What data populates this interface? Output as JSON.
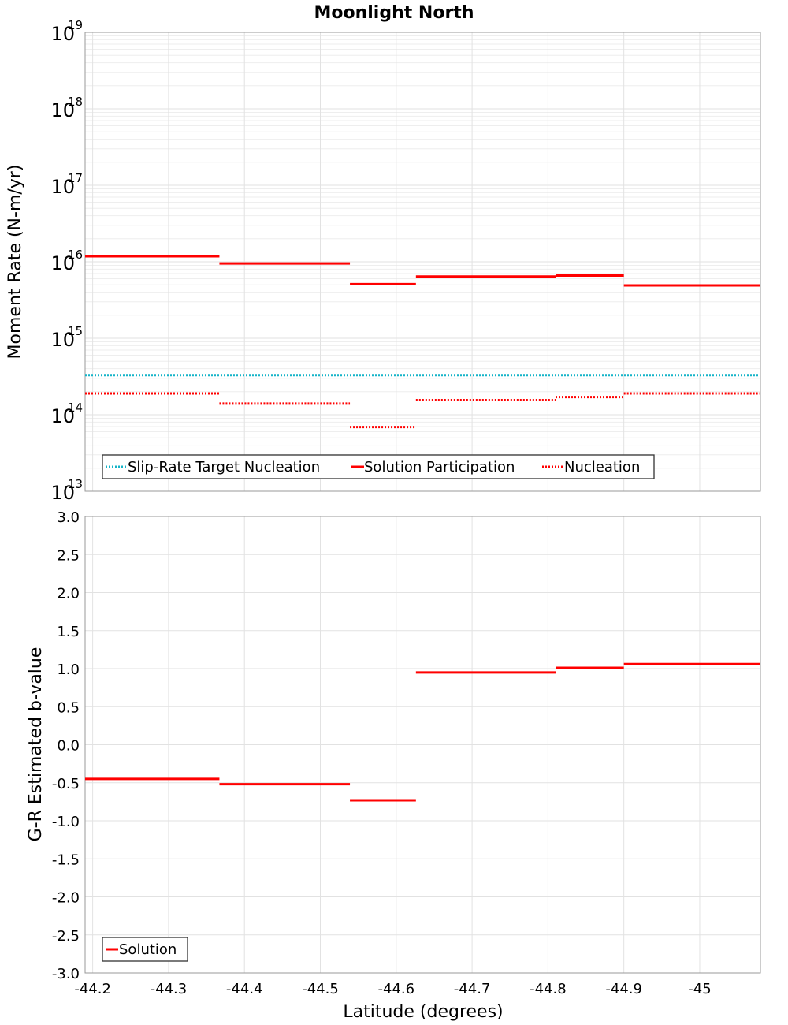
{
  "title": "Moonlight North",
  "colors": {
    "solution": "#ff0000",
    "target": "#14b4c8",
    "nucleation": "#ff0000"
  },
  "chart_data": [
    {
      "type": "line",
      "step": true,
      "yscale": "log",
      "ylabel": "Moment Rate (N-m/yr)",
      "xlim": [
        -44.19,
        -45.08
      ],
      "ylim": [
        10000000000000.0,
        1e+19
      ],
      "y_ticks": [
        {
          "base": "10",
          "exp": "13"
        },
        {
          "base": "10",
          "exp": "14"
        },
        {
          "base": "10",
          "exp": "15"
        },
        {
          "base": "10",
          "exp": "16"
        },
        {
          "base": "10",
          "exp": "17"
        },
        {
          "base": "10",
          "exp": "18"
        },
        {
          "base": "10",
          "exp": "19"
        }
      ],
      "grid": true,
      "legend_position": "bottom-left",
      "series": [
        {
          "name": "Slip-Rate Target Nucleation",
          "style": "dotted",
          "color": "#14b4c8",
          "segments": [
            {
              "x0": -44.19,
              "x1": -45.08,
              "y": 330000000000000.0
            }
          ]
        },
        {
          "name": "Solution Participation",
          "style": "solid",
          "color": "#ff0000",
          "segments": [
            {
              "x0": -44.19,
              "x1": -44.367,
              "y": 1.18e+16
            },
            {
              "x0": -44.367,
              "x1": -44.539,
              "y": 9500000000000000.0
            },
            {
              "x0": -44.539,
              "x1": -44.626,
              "y": 5100000000000000.0
            },
            {
              "x0": -44.626,
              "x1": -44.81,
              "y": 6400000000000000.0
            },
            {
              "x0": -44.81,
              "x1": -44.9,
              "y": 6600000000000000.0
            },
            {
              "x0": -44.9,
              "x1": -45.08,
              "y": 4900000000000000.0
            }
          ]
        },
        {
          "name": "Nucleation",
          "style": "dotted",
          "color": "#ff0000",
          "segments": [
            {
              "x0": -44.19,
              "x1": -44.367,
              "y": 190000000000000.0
            },
            {
              "x0": -44.367,
              "x1": -44.539,
              "y": 140000000000000.0
            },
            {
              "x0": -44.539,
              "x1": -44.626,
              "y": 69000000000000.0
            },
            {
              "x0": -44.626,
              "x1": -44.81,
              "y": 155000000000000.0
            },
            {
              "x0": -44.81,
              "x1": -44.9,
              "y": 170000000000000.0
            },
            {
              "x0": -44.9,
              "x1": -45.08,
              "y": 190000000000000.0
            }
          ]
        }
      ]
    },
    {
      "type": "line",
      "step": true,
      "ylabel": "G-R Estimated b-value",
      "xlabel": "Latitude (degrees)",
      "xlim": [
        -44.19,
        -45.08
      ],
      "ylim": [
        -3.0,
        3.0
      ],
      "x_ticks": [
        "-44.2",
        "-44.3",
        "-44.4",
        "-44.5",
        "-44.6",
        "-44.7",
        "-44.8",
        "-44.9",
        "-45"
      ],
      "y_ticks": [
        "-3.0",
        "-2.5",
        "-2.0",
        "-1.5",
        "-1.0",
        "-0.5",
        "0.0",
        "0.5",
        "1.0",
        "1.5",
        "2.0",
        "2.5",
        "3.0"
      ],
      "grid": true,
      "legend_position": "bottom-left",
      "series": [
        {
          "name": "Solution",
          "style": "solid",
          "color": "#ff0000",
          "segments": [
            {
              "x0": -44.19,
              "x1": -44.367,
              "y": -0.45
            },
            {
              "x0": -44.367,
              "x1": -44.539,
              "y": -0.52
            },
            {
              "x0": -44.539,
              "x1": -44.626,
              "y": -0.73
            },
            {
              "x0": -44.626,
              "x1": -44.81,
              "y": 0.95
            },
            {
              "x0": -44.81,
              "x1": -44.9,
              "y": 1.01
            },
            {
              "x0": -44.9,
              "x1": -45.08,
              "y": 1.06
            }
          ]
        }
      ]
    }
  ]
}
